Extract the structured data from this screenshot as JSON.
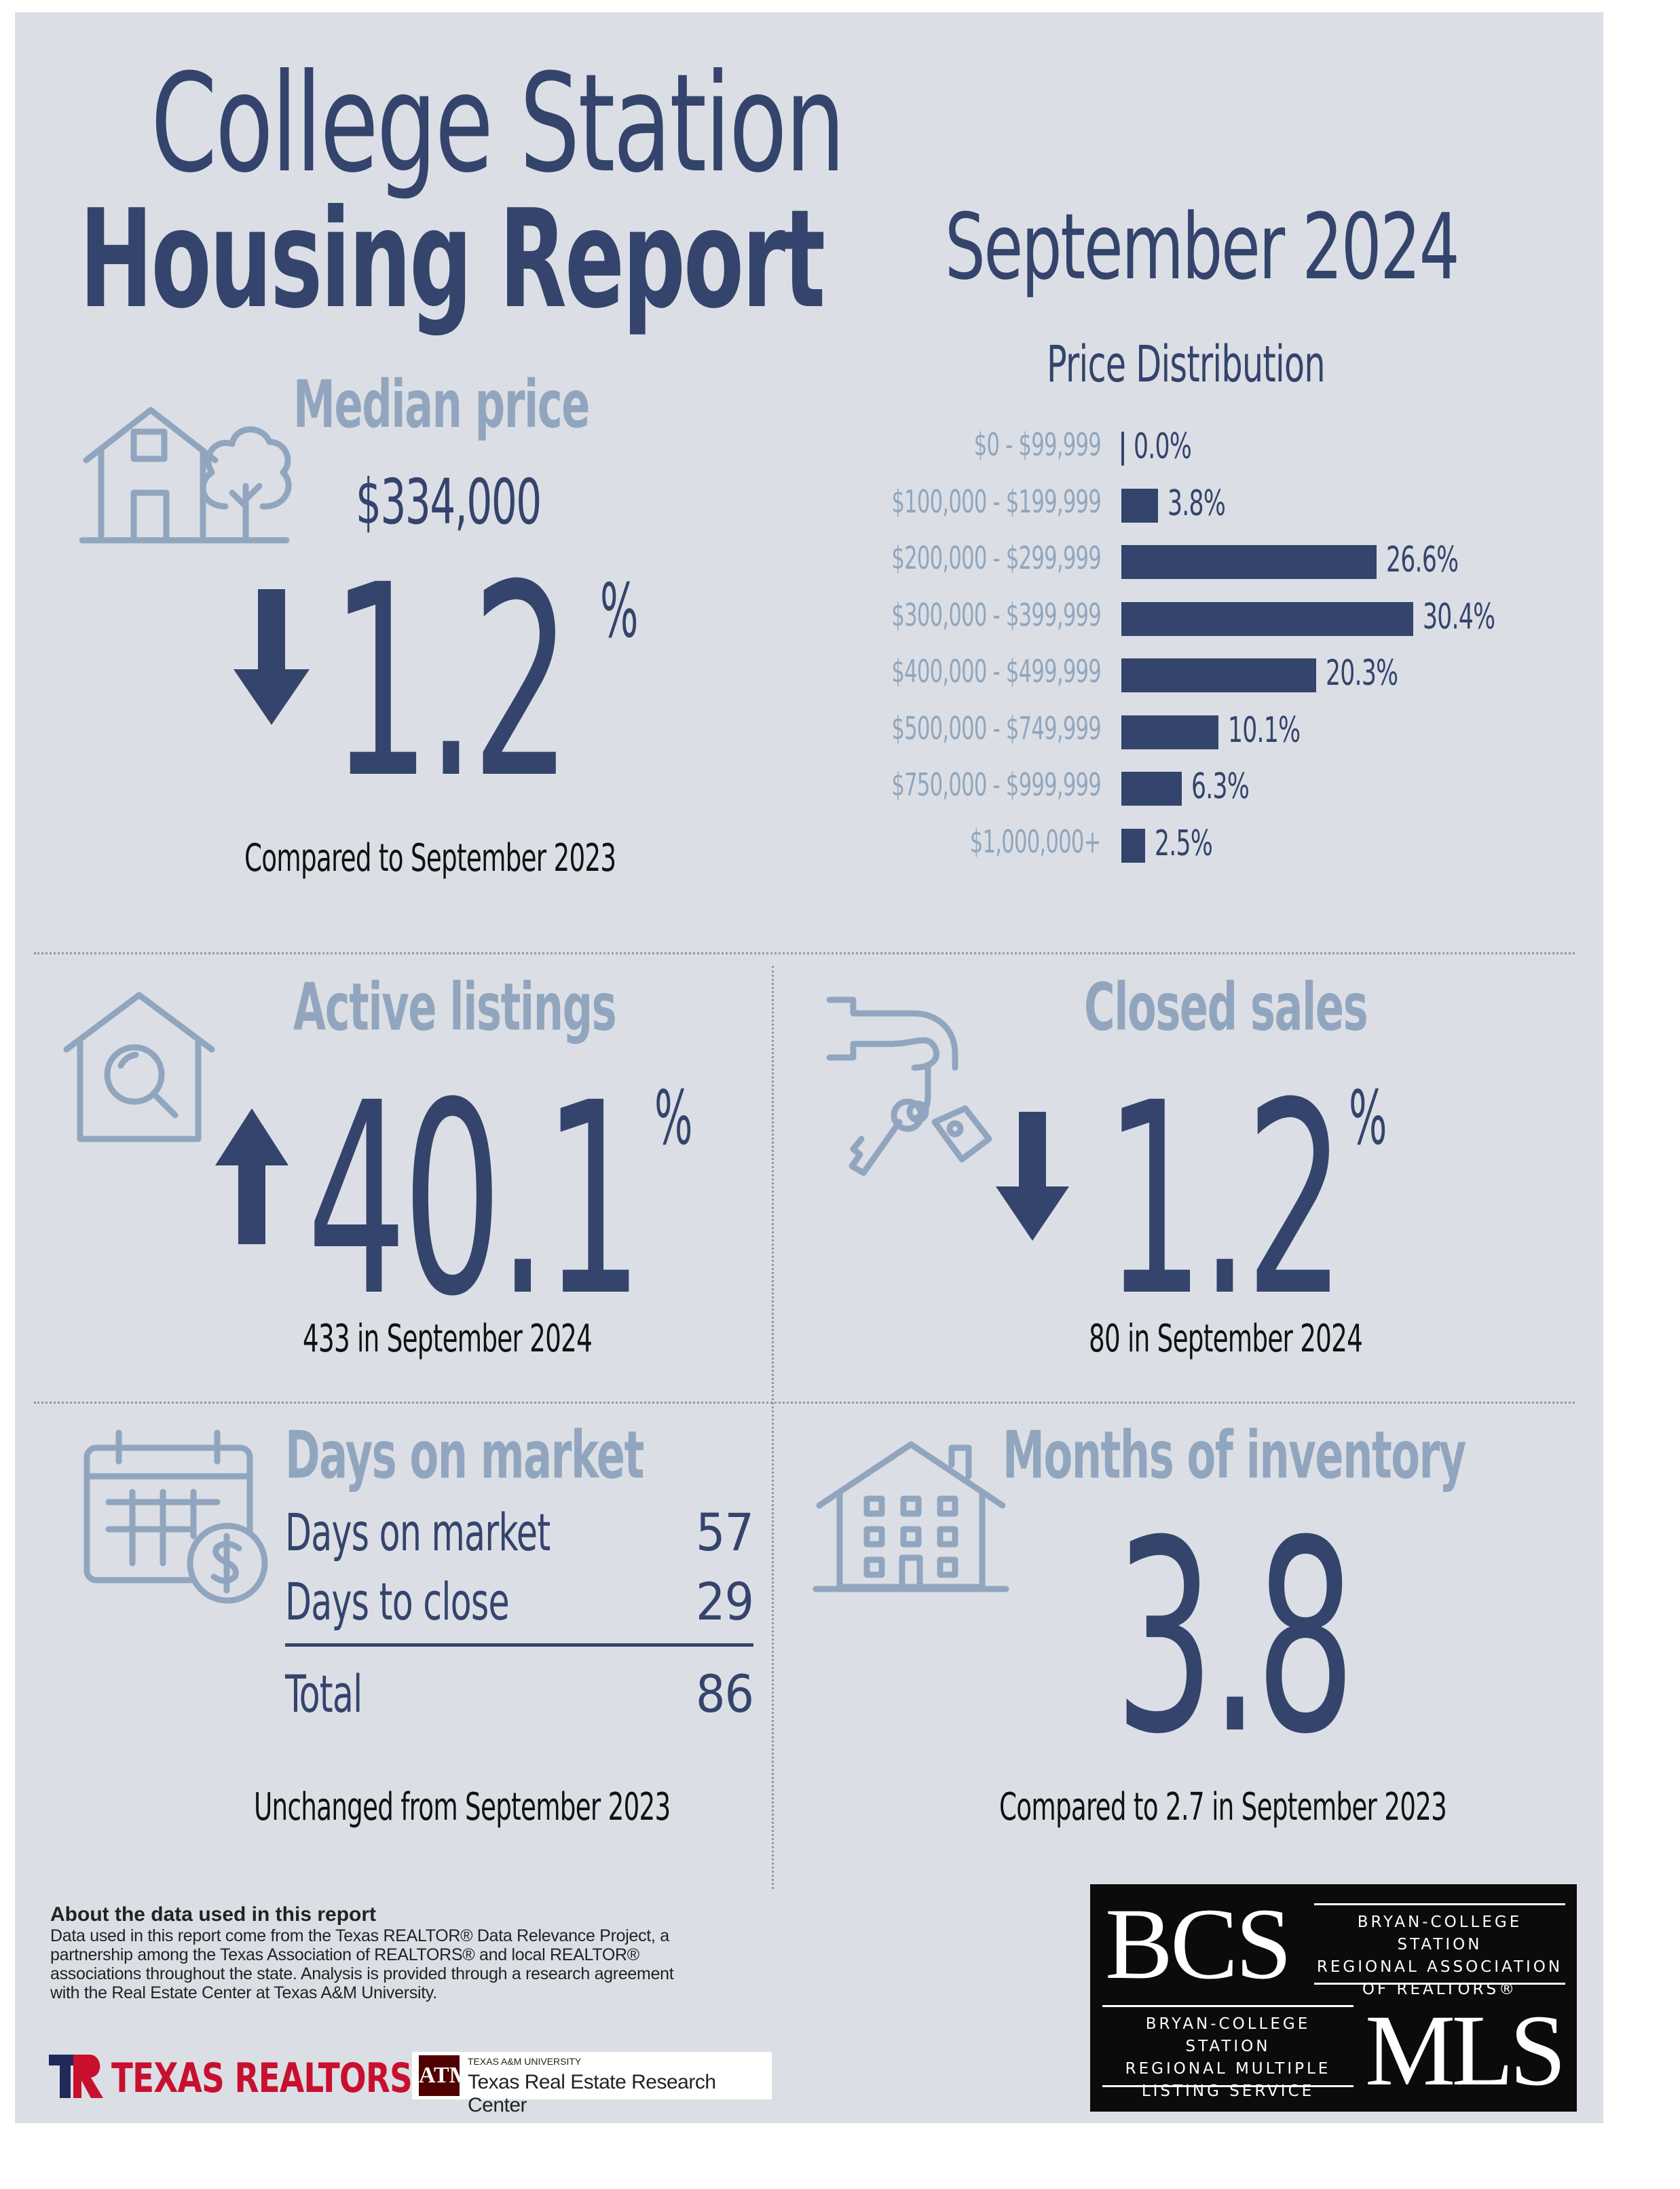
{
  "header": {
    "city": "College Station",
    "title": "Housing Report",
    "month": "September 2024"
  },
  "median_price": {
    "label": "Median price",
    "value": "$334,000",
    "change": "1.2",
    "unit": "%",
    "direction": "down",
    "caption": "Compared to September 2023",
    "icon": "house-tree-icon"
  },
  "price_distribution": {
    "title": "Price Distribution",
    "bars": [
      {
        "range": "$0 - $99,999",
        "label": "0.0%",
        "value": 0.0
      },
      {
        "range": "$100,000 - $199,999",
        "label": "3.8%",
        "value": 3.8
      },
      {
        "range": "$200,000 - $299,999",
        "label": "26.6%",
        "value": 26.6
      },
      {
        "range": "$300,000 - $399,999",
        "label": "30.4%",
        "value": 30.4
      },
      {
        "range": "$400,000 - $499,999",
        "label": "20.3%",
        "value": 20.3
      },
      {
        "range": "$500,000 - $749,999",
        "label": "10.1%",
        "value": 10.1
      },
      {
        "range": "$750,000 - $999,999",
        "label": "6.3%",
        "value": 6.3
      },
      {
        "range": "$1,000,000+",
        "label": "2.5%",
        "value": 2.5
      }
    ],
    "bar_color": "#34446c"
  },
  "active_listings": {
    "label": "Active listings",
    "change": "40.1",
    "unit": "%",
    "direction": "up",
    "caption": "433 in September 2024",
    "icon": "house-search-icon"
  },
  "closed_sales": {
    "label": "Closed sales",
    "change": "1.2",
    "unit": "%",
    "direction": "down",
    "caption": "80 in September 2024",
    "icon": "hand-key-icon"
  },
  "days_on_market": {
    "label": "Days on market",
    "rows": [
      {
        "name": "Days on market",
        "value": "57"
      },
      {
        "name": "Days to close",
        "value": "29"
      }
    ],
    "total": {
      "name": "Total",
      "value": "86"
    },
    "caption": "Unchanged from September 2023",
    "icon": "calendar-dollar-icon"
  },
  "months_inventory": {
    "label": "Months of inventory",
    "value": "3.8",
    "caption": "Compared to 2.7 in September 2023",
    "icon": "apartment-icon"
  },
  "about": {
    "heading": "About the data used in this report",
    "lines": [
      "Data used in this report come from the Texas REALTOR® Data Relevance Project, a",
      "partnership among the Texas Association of REALTORS® and local REALTOR®",
      "associations throughout the state. Analysis is provided through a research agreement",
      "with the Real Estate Center at Texas A&M University."
    ]
  },
  "logos": {
    "texas_realtors": "TEXAS REALTORS",
    "tamu_small": "TEXAS A&M UNIVERSITY",
    "tamu_center": "Texas Real Estate Research Center",
    "bcs": "BCS",
    "bcs_org": [
      "BRYAN-COLLEGE STATION",
      "REGIONAL ASSOCIATION",
      "OF REALTORS®"
    ],
    "mls_org": [
      "BRYAN-COLLEGE STATION",
      "REGIONAL MULTIPLE",
      "LISTING SERVICE"
    ],
    "mls": "MLS"
  },
  "colors": {
    "navy": "#34446c",
    "steel": "#91a6be",
    "background": "#dbdfe5",
    "texas_red": "#c8102e",
    "aggie_maroon": "#500000"
  }
}
